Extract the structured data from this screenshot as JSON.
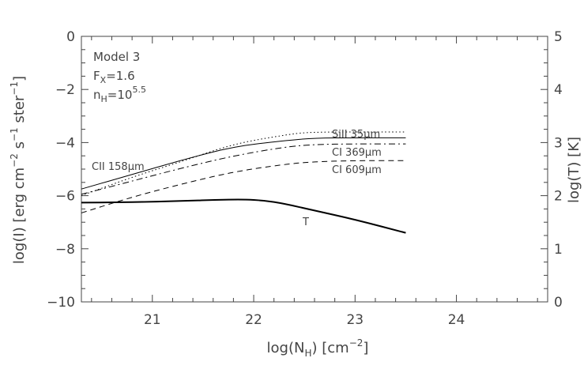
{
  "chart_data": {
    "type": "line",
    "title": "",
    "xlabel": "log(N_H) [cm^-2]",
    "ylabel": "log(I) [erg cm^-2 s^-1 ster^-1]",
    "ylabel_right": "log(T) [K]",
    "xlim": [
      20.3,
      24.9
    ],
    "ylim": [
      -10,
      0
    ],
    "ylim_right": [
      0,
      5
    ],
    "x_ticks": [
      21,
      22,
      23,
      24
    ],
    "y_ticks": [
      0,
      -2,
      -4,
      -6,
      -8,
      -10
    ],
    "y_right_ticks": [
      5,
      4,
      3,
      2,
      1,
      0
    ],
    "annotations": {
      "model": "Model 3",
      "fx_base": "F",
      "fx_sub": "X",
      "fx_value": "=1.6",
      "nh_base": "n",
      "nh_sub": "H",
      "nh_eq": "=10",
      "nh_sup": "5.5"
    },
    "grid": false,
    "series": [
      {
        "name": "CII 158μm",
        "label": "CII 158μm",
        "style": "solid",
        "width": 1,
        "axis": "left",
        "x": [
          20.3,
          20.8,
          21.3,
          21.8,
          22.3,
          22.6,
          23.0,
          23.5
        ],
        "y": [
          -5.75,
          -5.2,
          -4.65,
          -4.15,
          -3.93,
          -3.83,
          -3.82,
          -3.82
        ]
      },
      {
        "name": "SiII 35μm",
        "label": "SiII 35μm",
        "style": "dotted",
        "width": 1,
        "axis": "left",
        "x": [
          20.3,
          20.8,
          21.3,
          21.8,
          22.3,
          22.5,
          22.8,
          23.5
        ],
        "y": [
          -6.0,
          -5.3,
          -4.7,
          -4.05,
          -3.72,
          -3.62,
          -3.6,
          -3.6
        ]
      },
      {
        "name": "CI 369μm",
        "label": "CI 369μm",
        "style": "dashdot",
        "width": 1,
        "axis": "left",
        "x": [
          20.3,
          20.8,
          21.3,
          21.8,
          22.3,
          22.6,
          23.0,
          23.5
        ],
        "y": [
          -5.95,
          -5.45,
          -4.95,
          -4.5,
          -4.17,
          -4.07,
          -4.05,
          -4.05
        ]
      },
      {
        "name": "CI 609μm",
        "label": "CI 609μm",
        "style": "dashed",
        "width": 1,
        "axis": "left",
        "x": [
          20.3,
          20.8,
          21.3,
          21.8,
          22.3,
          22.6,
          23.0,
          23.5
        ],
        "y": [
          -6.65,
          -6.05,
          -5.55,
          -5.1,
          -4.82,
          -4.72,
          -4.68,
          -4.68
        ]
      },
      {
        "name": "T",
        "label": "T",
        "style": "solid",
        "width": 2,
        "axis": "right",
        "x": [
          20.3,
          20.8,
          21.3,
          21.6,
          21.9,
          22.1,
          22.3,
          22.6,
          23.0,
          23.5
        ],
        "y": [
          1.87,
          1.875,
          1.9,
          1.92,
          1.93,
          1.91,
          1.85,
          1.72,
          1.55,
          1.3
        ]
      }
    ]
  }
}
